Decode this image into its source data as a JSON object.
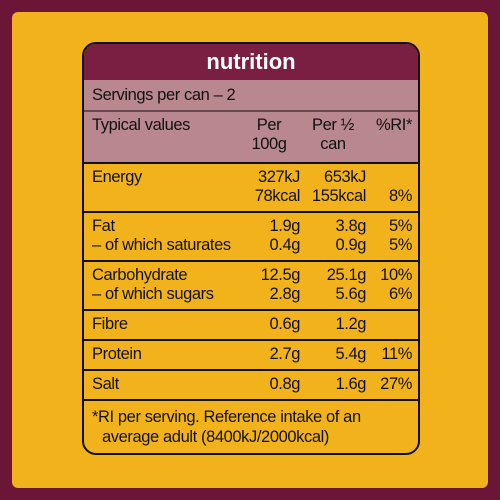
{
  "title": "nutrition",
  "servings": "Servings per can – 2",
  "headers": [
    [
      "Typical values"
    ],
    [
      "Per",
      "100g"
    ],
    [
      "Per ½",
      "can"
    ],
    [
      "%RI*"
    ]
  ],
  "rows": [
    [
      [
        "Energy",
        "327kJ",
        "653kJ",
        null
      ],
      [
        null,
        "78kcal",
        "155kcal",
        "8%"
      ]
    ],
    [
      [
        "Fat",
        "1.9g",
        "3.8g",
        "5%"
      ],
      [
        "– of which saturates",
        "0.4g",
        "0.9g",
        "5%"
      ]
    ],
    [
      [
        "Carbohydrate",
        "12.5g",
        "25.1g",
        "10%"
      ],
      [
        "– of which sugars",
        "2.8g",
        "5.6g",
        "6%"
      ]
    ],
    [
      [
        "Fibre",
        "0.6g",
        "1.2g",
        null
      ]
    ],
    [
      [
        "Protein",
        "2.7g",
        "5.4g",
        "11%"
      ]
    ],
    [
      [
        "Salt",
        "0.8g",
        "1.6g",
        "27%"
      ]
    ]
  ],
  "footnote": [
    "*RI per serving. Reference intake of an",
    "average adult (8400kJ/2000kcal)"
  ]
}
